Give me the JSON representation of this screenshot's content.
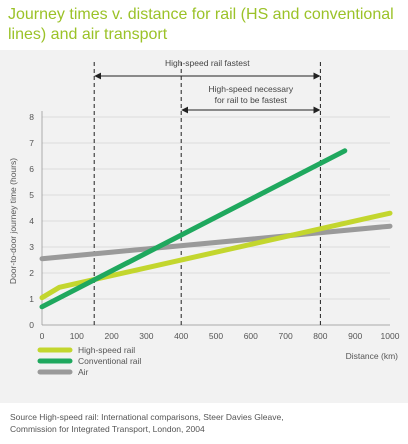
{
  "chart_data": {
    "type": "line",
    "title": "Journey times v. distance for rail (HS and conventional lines) and air transport",
    "xlabel": "Distance (km)",
    "ylabel": "Door-to-door journey time (hours)",
    "xlim": [
      0,
      1000
    ],
    "ylim": [
      0,
      8
    ],
    "x_ticks": [
      "0",
      "100",
      "200",
      "300",
      "400",
      "500",
      "600",
      "700",
      "800",
      "900",
      "1000"
    ],
    "y_ticks": [
      "0",
      "1",
      "2",
      "3",
      "4",
      "5",
      "6",
      "7",
      "8"
    ],
    "grid": true,
    "legend_position": "bottom-left",
    "series": [
      {
        "name": "High-speed rail",
        "color": "#c3d62e",
        "points": [
          [
            0,
            1.05
          ],
          [
            50,
            1.45
          ],
          [
            1000,
            4.3
          ]
        ]
      },
      {
        "name": "Conventional rail",
        "color": "#1fa85e",
        "points": [
          [
            0,
            0.7
          ],
          [
            870,
            6.7
          ]
        ]
      },
      {
        "name": "Air",
        "color": "#9a9a9a",
        "points": [
          [
            0,
            2.55
          ],
          [
            1000,
            3.8
          ]
        ]
      }
    ],
    "annotations": [
      {
        "text": "High-speed rail fastest",
        "x_start": 150,
        "x_end": 800
      },
      {
        "text": "High-speed necessary for rail to be fastest",
        "lines": [
          "High-speed necessary",
          "for rail to be fastest"
        ],
        "x_start": 400,
        "x_end": 800
      }
    ],
    "reference_lines_x": [
      150,
      400,
      800
    ]
  },
  "source": {
    "line1": "Source High-speed rail: International comparisons, Steer Davies Gleave,",
    "line2": "Commission for Integrated Transport, London, 2004"
  }
}
